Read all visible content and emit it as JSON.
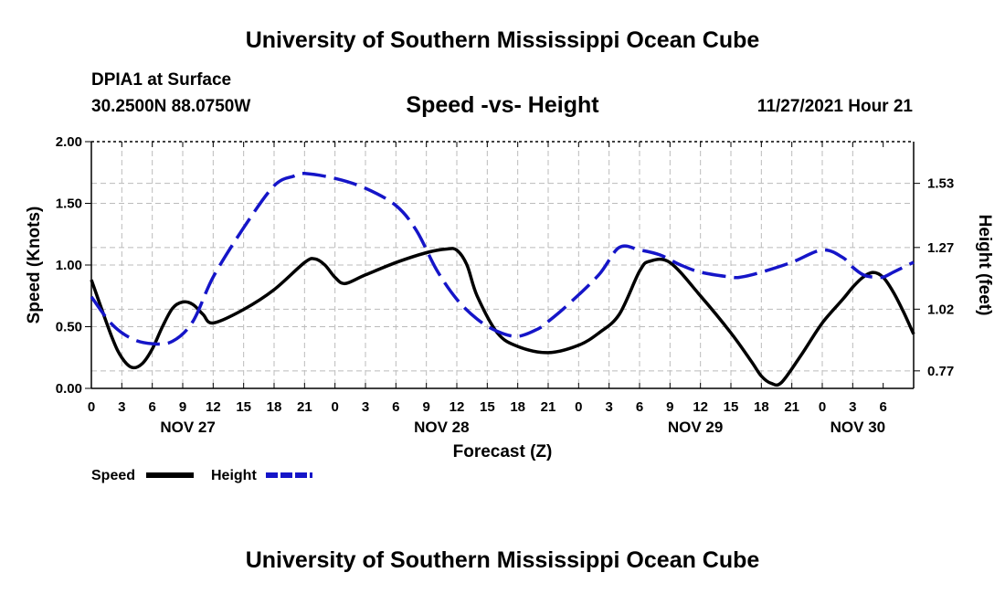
{
  "header": {
    "title": "University of Southern Mississippi Ocean Cube",
    "station": "DPIA1 at Surface",
    "coords": "30.2500N  88.0750W",
    "subtitle": "Speed -vs- Height",
    "datetime": "11/27/2021 Hour 21"
  },
  "footer": {
    "title": "University of Southern Mississippi Ocean Cube"
  },
  "colors": {
    "speed": "#000000",
    "height": "#1515c8",
    "grid": "#bbbbbb"
  },
  "chart_data": {
    "type": "line",
    "title": "Speed -vs- Height",
    "xlabel": "Forecast (Z)",
    "ylabel_left": "Speed (Knots)",
    "ylabel_right": "Height (feet)",
    "xlim": [
      0,
      81
    ],
    "ylim_left": [
      0,
      2.0
    ],
    "yticks_left": [
      "0.00",
      "0.50",
      "1.00",
      "1.50",
      "2.00"
    ],
    "ylim_right": [
      0.699,
      1.699
    ],
    "yticks_right": [
      "0.77",
      "1.02",
      "1.27",
      "1.53"
    ],
    "x_tick_labels": [
      "0",
      "3",
      "6",
      "9",
      "12",
      "15",
      "18",
      "21",
      "0",
      "3",
      "6",
      "9",
      "12",
      "15",
      "18",
      "21",
      "0",
      "3",
      "6",
      "9",
      "12",
      "15",
      "18",
      "21",
      "0",
      "3",
      "6"
    ],
    "day_labels": [
      {
        "label": "NOV 27",
        "x": 9.5
      },
      {
        "label": "NOV 28",
        "x": 34.5
      },
      {
        "label": "NOV 29",
        "x": 59.5
      },
      {
        "label": "NOV 30",
        "x": 75.5
      }
    ],
    "grid": true,
    "legend": "bottom-left",
    "series": [
      {
        "name": "Speed",
        "axis": "left",
        "style": "solid",
        "x": [
          0,
          2,
          3,
          4,
          5,
          6,
          7,
          8,
          9,
          10,
          11,
          12,
          15,
          18,
          21,
          22,
          23,
          24,
          25,
          27,
          30,
          33,
          35,
          36,
          37,
          38,
          40,
          42,
          45,
          48,
          50,
          52,
          54,
          55,
          57,
          60,
          63,
          65,
          66,
          67,
          68,
          70,
          72,
          74,
          75,
          76,
          77,
          78,
          79,
          80,
          81
        ],
        "values": [
          0.88,
          0.42,
          0.25,
          0.17,
          0.2,
          0.32,
          0.5,
          0.65,
          0.7,
          0.68,
          0.6,
          0.53,
          0.64,
          0.8,
          1.02,
          1.05,
          1.0,
          0.9,
          0.85,
          0.92,
          1.02,
          1.1,
          1.13,
          1.12,
          1.0,
          0.75,
          0.45,
          0.34,
          0.29,
          0.35,
          0.45,
          0.6,
          0.95,
          1.03,
          1.02,
          0.75,
          0.45,
          0.22,
          0.1,
          0.04,
          0.05,
          0.28,
          0.53,
          0.72,
          0.82,
          0.9,
          0.94,
          0.9,
          0.78,
          0.62,
          0.44
        ]
      },
      {
        "name": "Height",
        "axis": "right",
        "style": "dashed",
        "x": [
          0,
          2,
          4,
          6,
          8,
          10,
          12,
          15,
          18,
          20,
          21,
          24,
          27,
          30,
          32,
          34,
          36,
          38,
          40,
          42,
          44,
          45,
          47,
          50,
          52,
          54,
          56,
          58,
          60,
          63,
          64,
          66,
          69,
          72,
          74,
          75,
          76,
          77,
          78,
          79,
          80,
          81
        ],
        "values": [
          1.07,
          0.96,
          0.9,
          0.88,
          0.89,
          0.97,
          1.15,
          1.35,
          1.52,
          1.56,
          1.57,
          1.55,
          1.51,
          1.44,
          1.34,
          1.18,
          1.06,
          0.98,
          0.93,
          0.91,
          0.94,
          0.97,
          1.04,
          1.16,
          1.27,
          1.26,
          1.24,
          1.2,
          1.17,
          1.15,
          1.15,
          1.17,
          1.21,
          1.26,
          1.23,
          1.19,
          1.16,
          1.15,
          1.15,
          1.17,
          1.19,
          1.21
        ]
      }
    ]
  }
}
